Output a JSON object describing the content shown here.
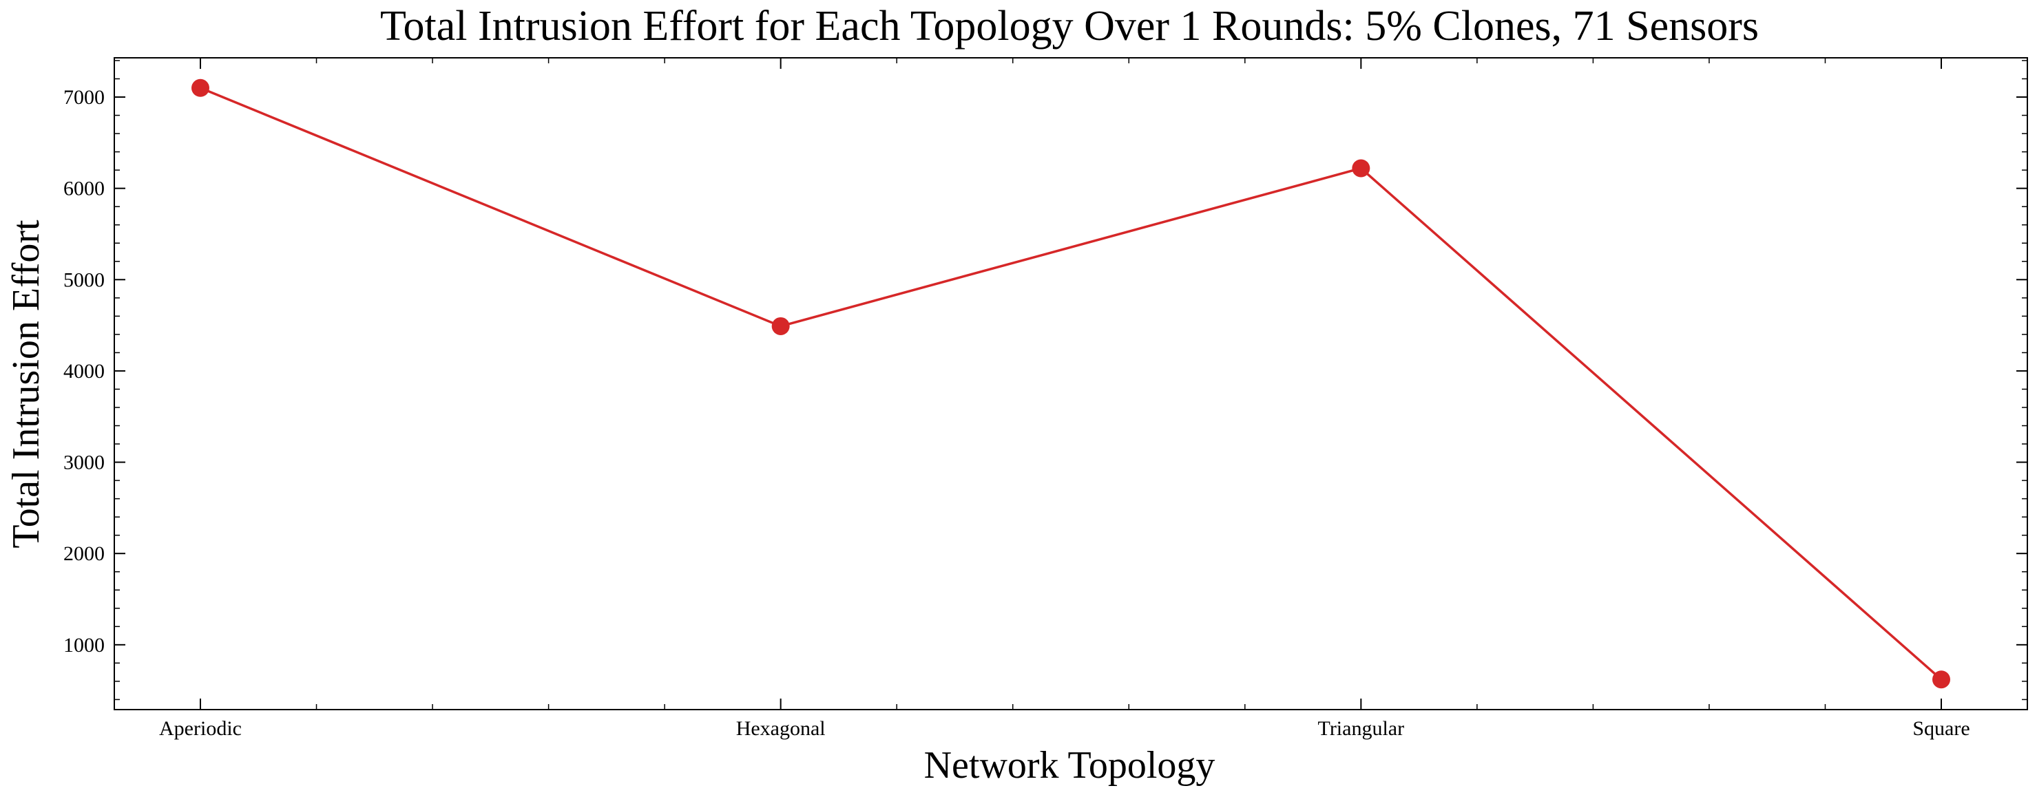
{
  "chart_data": {
    "type": "line",
    "title": "Total Intrusion Effort for Each Topology Over 1 Rounds: 5% Clones, 71 Sensors",
    "xlabel": "Network Topology",
    "ylabel": "Total Intrusion Effort",
    "categories": [
      "Aperiodic",
      "Hexagonal",
      "Triangular",
      "Square"
    ],
    "series": [
      {
        "values": [
          7100,
          4490,
          6220,
          620
        ],
        "color": "#d62728"
      }
    ],
    "ylim": [
      290,
      7430
    ],
    "yticks": [
      1000,
      2000,
      3000,
      4000,
      5000,
      6000,
      7000
    ],
    "grid": false,
    "legend": "none"
  }
}
